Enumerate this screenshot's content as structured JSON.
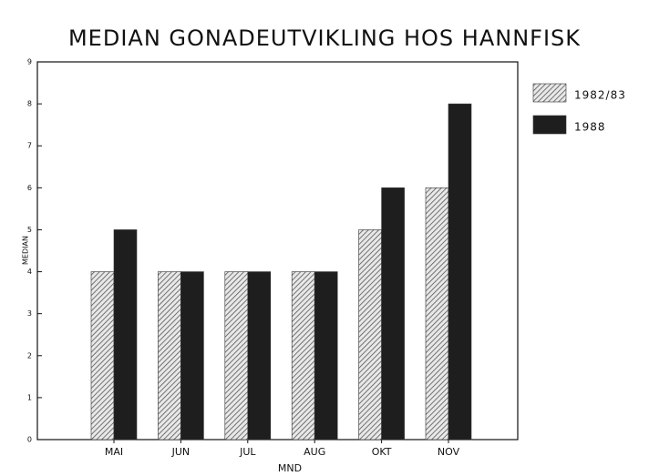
{
  "chart_data": {
    "type": "bar",
    "title": "MEDIAN GONADEUTVIKLING HOS HANNFISK",
    "x_label": "MND",
    "y_label": "MEDIAN",
    "categories": [
      "MAI",
      "JUN",
      "JUL",
      "AUG",
      "OKT",
      "NOV"
    ],
    "series": [
      {
        "name": "1982/83",
        "color": "#9a9a9a",
        "hatch": true,
        "values": [
          4,
          4,
          4,
          4,
          5,
          6
        ]
      },
      {
        "name": "1988",
        "color": "#1e1e1e",
        "hatch": false,
        "values": [
          5,
          4,
          4,
          4,
          6,
          8
        ]
      }
    ],
    "ylim": [
      0,
      9
    ],
    "yticks": [
      0,
      1,
      2,
      3,
      4,
      5,
      6,
      7,
      8,
      9
    ],
    "legend": "right"
  }
}
